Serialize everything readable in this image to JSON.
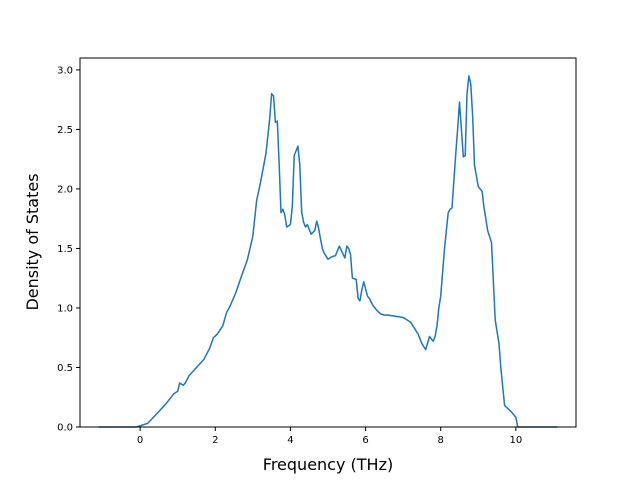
{
  "chart_data": {
    "type": "line",
    "title": "",
    "xlabel": "Frequency (THz)",
    "ylabel": "Density of States",
    "xlim": [
      -1.6,
      11.6
    ],
    "ylim": [
      0.0,
      3.1
    ],
    "xticks": [
      0,
      2,
      4,
      6,
      8,
      10
    ],
    "yticks": [
      0.0,
      0.5,
      1.0,
      1.5,
      2.0,
      2.5,
      3.0
    ],
    "xtick_labels": [
      "0",
      "2",
      "4",
      "6",
      "8",
      "10"
    ],
    "ytick_labels": [
      "0.0",
      "0.5",
      "1.0",
      "1.5",
      "2.0",
      "2.5",
      "3.0"
    ],
    "grid": false,
    "legend": "none",
    "line_color": "#1f77b4",
    "series": [
      {
        "x": [
          -1.1,
          -0.5,
          -0.1,
          0.2,
          0.35,
          0.5,
          0.7,
          0.9,
          1.0,
          1.05,
          1.15,
          1.2,
          1.3,
          1.5,
          1.7,
          1.85,
          1.95,
          2.05,
          2.2,
          2.3,
          2.4,
          2.55,
          2.7,
          2.85,
          3.0,
          3.1,
          3.2,
          3.35,
          3.45,
          3.5,
          3.55,
          3.6,
          3.65,
          3.7,
          3.75,
          3.8,
          3.85,
          3.9,
          4.0,
          4.05,
          4.1,
          4.2,
          4.25,
          4.3,
          4.35,
          4.4,
          4.45,
          4.55,
          4.65,
          4.7,
          4.75,
          4.8,
          4.85,
          4.9,
          5.0,
          5.1,
          5.2,
          5.3,
          5.45,
          5.5,
          5.55,
          5.6,
          5.65,
          5.75,
          5.8,
          5.85,
          5.9,
          5.95,
          6.05,
          6.1,
          6.2,
          6.3,
          6.4,
          6.5,
          6.6,
          6.8,
          7.0,
          7.2,
          7.4,
          7.5,
          7.6,
          7.7,
          7.8,
          7.85,
          7.9,
          7.95,
          8.0,
          8.1,
          8.2,
          8.25,
          8.3,
          8.4,
          8.45,
          8.5,
          8.6,
          8.65,
          8.7,
          8.75,
          8.8,
          8.85,
          8.9,
          9.0,
          9.1,
          9.15,
          9.25,
          9.3,
          9.35,
          9.45,
          9.55,
          9.6,
          9.7,
          9.8,
          9.9,
          10.0,
          10.05,
          10.5,
          11.1
        ],
        "y": [
          0.0,
          0.0,
          0.0,
          0.03,
          0.08,
          0.13,
          0.2,
          0.28,
          0.3,
          0.37,
          0.35,
          0.37,
          0.43,
          0.5,
          0.57,
          0.66,
          0.75,
          0.78,
          0.85,
          0.96,
          1.02,
          1.13,
          1.27,
          1.4,
          1.6,
          1.9,
          2.05,
          2.3,
          2.6,
          2.8,
          2.78,
          2.56,
          2.57,
          2.2,
          1.8,
          1.83,
          1.78,
          1.68,
          1.7,
          1.85,
          2.28,
          2.36,
          2.2,
          1.8,
          1.72,
          1.68,
          1.7,
          1.62,
          1.65,
          1.73,
          1.67,
          1.58,
          1.5,
          1.46,
          1.41,
          1.43,
          1.44,
          1.52,
          1.42,
          1.52,
          1.5,
          1.45,
          1.25,
          1.24,
          1.08,
          1.06,
          1.15,
          1.22,
          1.1,
          1.08,
          1.02,
          0.98,
          0.95,
          0.94,
          0.94,
          0.93,
          0.92,
          0.88,
          0.78,
          0.7,
          0.65,
          0.76,
          0.72,
          0.76,
          0.85,
          1.0,
          1.1,
          1.5,
          1.8,
          1.83,
          1.84,
          2.3,
          2.5,
          2.73,
          2.27,
          2.28,
          2.8,
          2.95,
          2.88,
          2.6,
          2.2,
          2.02,
          1.98,
          1.85,
          1.65,
          1.6,
          1.55,
          0.9,
          0.7,
          0.5,
          0.18,
          0.15,
          0.12,
          0.08,
          0.0,
          0.0,
          0.0
        ]
      }
    ]
  }
}
